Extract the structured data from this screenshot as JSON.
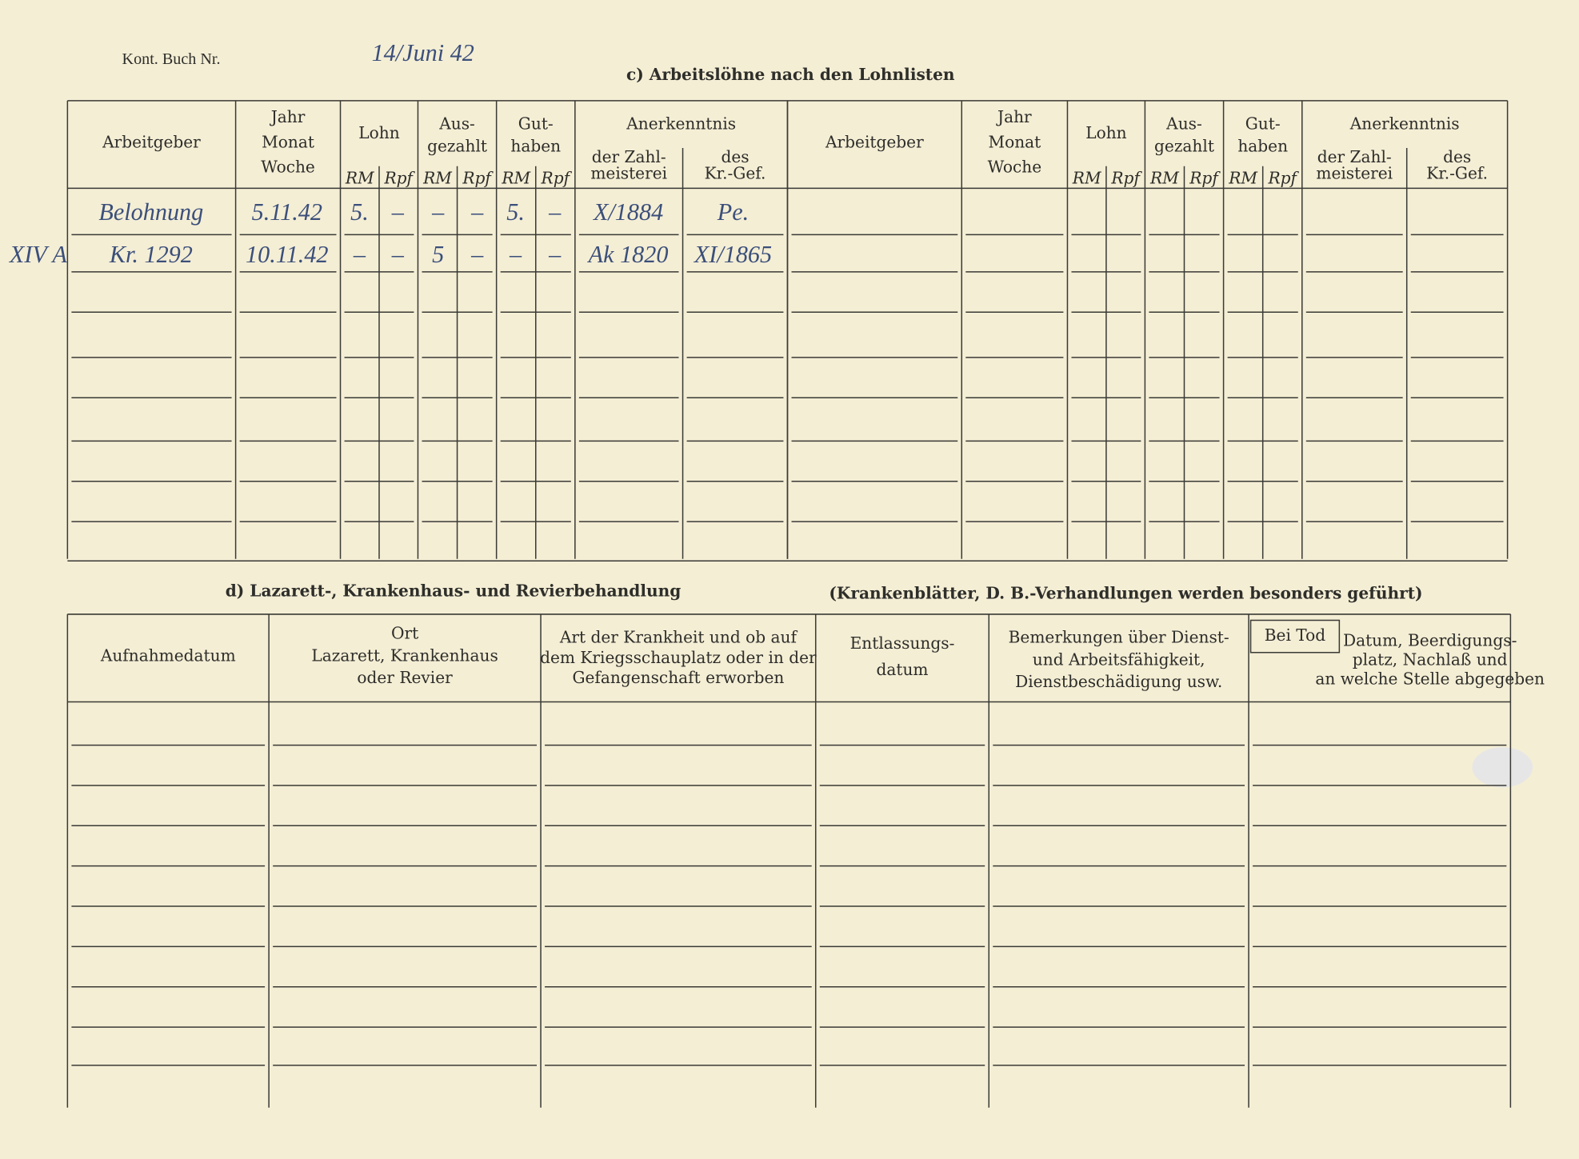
{
  "stamp": {
    "label": "Kont. Buch Nr.",
    "handwritten": "14/Juni 42"
  },
  "section_c": {
    "title": "c) Arbeitslöhne nach den Lohnlisten",
    "headers": {
      "employer": "Arbeitgeber",
      "period": [
        "Jahr",
        "Monat",
        "Woche"
      ],
      "wage": "Lohn",
      "paid": [
        "Aus-",
        "gezahlt"
      ],
      "credit": [
        "Gut-",
        "haben"
      ],
      "acknowledgement": "Anerkenntnis",
      "paymaster": [
        "der Zahl-",
        "meisterei"
      ],
      "camp": [
        "des",
        "Kr.-Gef."
      ],
      "rm": "RM",
      "rpf": "Rpf"
    },
    "margin_note": "XIV A",
    "rows": [
      [
        "Belohnung",
        "5.11.42",
        "5.",
        "–",
        "–",
        "–",
        "5.",
        "–",
        "X/1884",
        "Pe."
      ],
      [
        "Kr. 1292",
        "10.11.42",
        "–",
        "–",
        "5",
        "–",
        "–",
        "–",
        "Ak 1820",
        "XI/1865"
      ]
    ]
  },
  "section_d": {
    "title": "d) Lazarett-, Krankenhaus- und Revierbehandlung",
    "subtitle": "(Krankenblätter, D. B.-Verhandlungen werden besonders geführt)",
    "headers": [
      [
        "Aufnahmedatum"
      ],
      [
        "Ort",
        "Lazarett, Krankenhaus",
        "oder Revier"
      ],
      [
        "Art der Krankheit und ob auf",
        "dem Kriegsschauplatz oder in der",
        "Gefangenschaft erworben"
      ],
      [
        "Entlassungs-",
        "datum"
      ],
      [
        "Bemerkungen über Dienst-",
        "und Arbeitsfähigkeit,",
        "Dienstbeschädigung usw."
      ],
      [
        "Datum, Beerdigungs-",
        "platz, Nachlaß und",
        "an welche Stelle abgegeben"
      ]
    ],
    "death": "Bei Tod"
  }
}
